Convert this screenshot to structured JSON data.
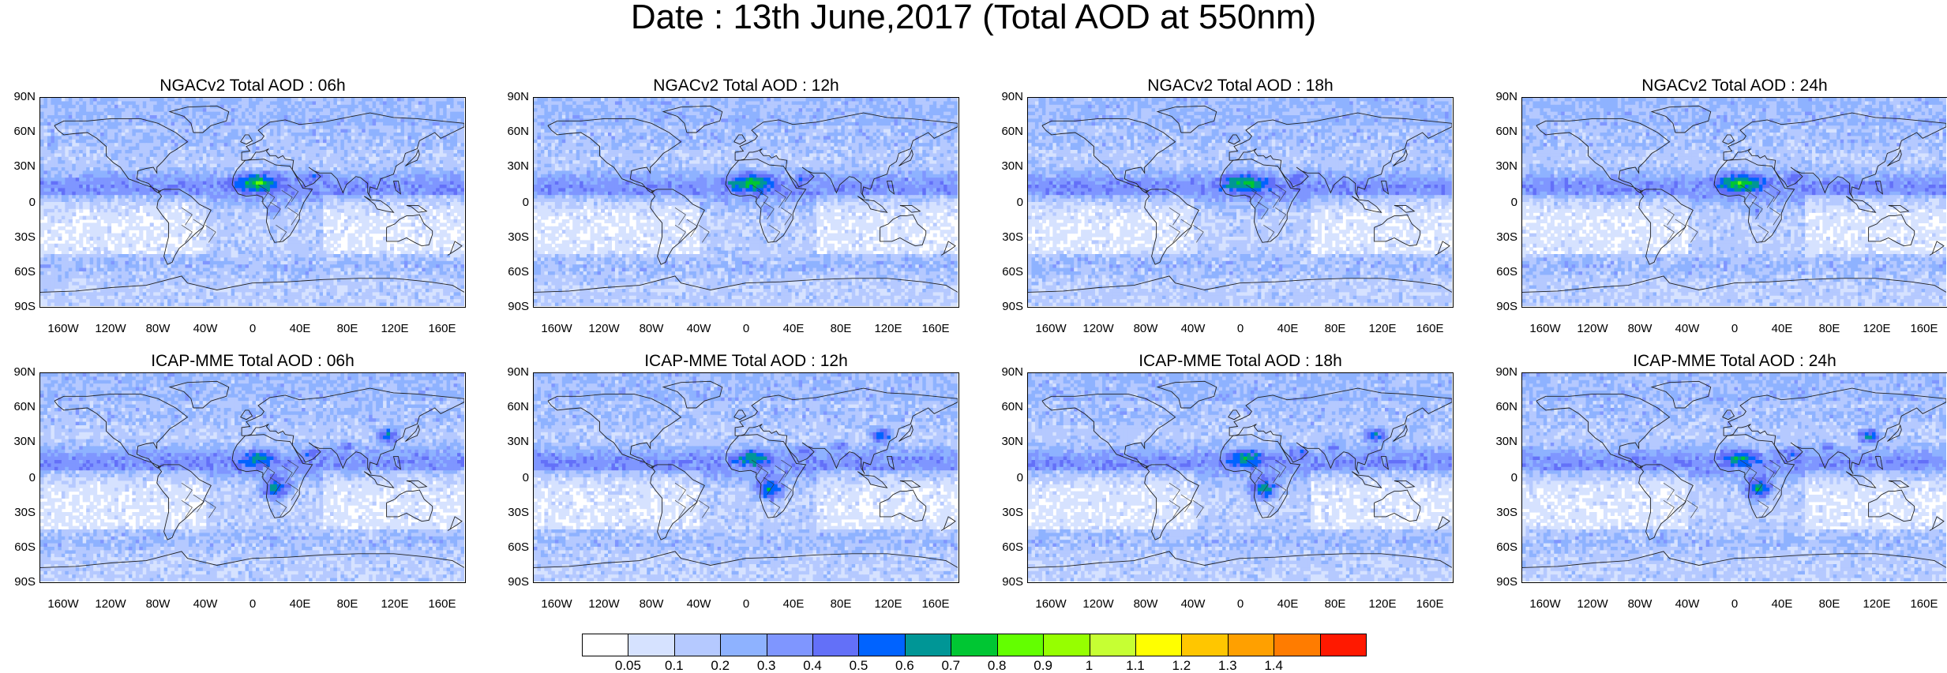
{
  "title": "Date : 13th June,2017 (Total AOD at 550nm)",
  "panels": [
    {
      "title": "NGACv2 Total AOD : 06h",
      "model": "NGACv2",
      "forecast_hour": "06h"
    },
    {
      "title": "NGACv2 Total AOD : 12h",
      "model": "NGACv2",
      "forecast_hour": "12h"
    },
    {
      "title": "NGACv2 Total AOD : 18h",
      "model": "NGACv2",
      "forecast_hour": "18h"
    },
    {
      "title": "NGACv2 Total AOD : 24h",
      "model": "NGACv2",
      "forecast_hour": "24h"
    },
    {
      "title": "ICAP-MME Total AOD : 06h",
      "model": "ICAP-MME",
      "forecast_hour": "06h"
    },
    {
      "title": "ICAP-MME Total AOD : 12h",
      "model": "ICAP-MME",
      "forecast_hour": "12h"
    },
    {
      "title": "ICAP-MME Total AOD : 18h",
      "model": "ICAP-MME",
      "forecast_hour": "18h"
    },
    {
      "title": "ICAP-MME Total AOD : 24h",
      "model": "ICAP-MME",
      "forecast_hour": "24h"
    }
  ],
  "lat_labels": [
    "90N",
    "60N",
    "30N",
    "0",
    "30S",
    "60S",
    "90S"
  ],
  "lon_labels": [
    "160W",
    "120W",
    "80W",
    "40W",
    "0",
    "40E",
    "80E",
    "120E",
    "160E"
  ],
  "colorbar": {
    "labels": [
      "0.05",
      "0.1",
      "0.2",
      "0.3",
      "0.4",
      "0.5",
      "0.6",
      "0.7",
      "0.8",
      "0.9",
      "1",
      "1.1",
      "1.2",
      "1.3",
      "1.4"
    ],
    "colors": [
      "#ffffff",
      "#d6e2ff",
      "#b5c9ff",
      "#8eb2ff",
      "#7f96ff",
      "#6370f8",
      "#0063ff",
      "#009696",
      "#00c633",
      "#63ff00",
      "#96ff00",
      "#c6ff33",
      "#ffff00",
      "#ffc600",
      "#ffa000",
      "#ff7c00",
      "#ff1900"
    ]
  }
}
